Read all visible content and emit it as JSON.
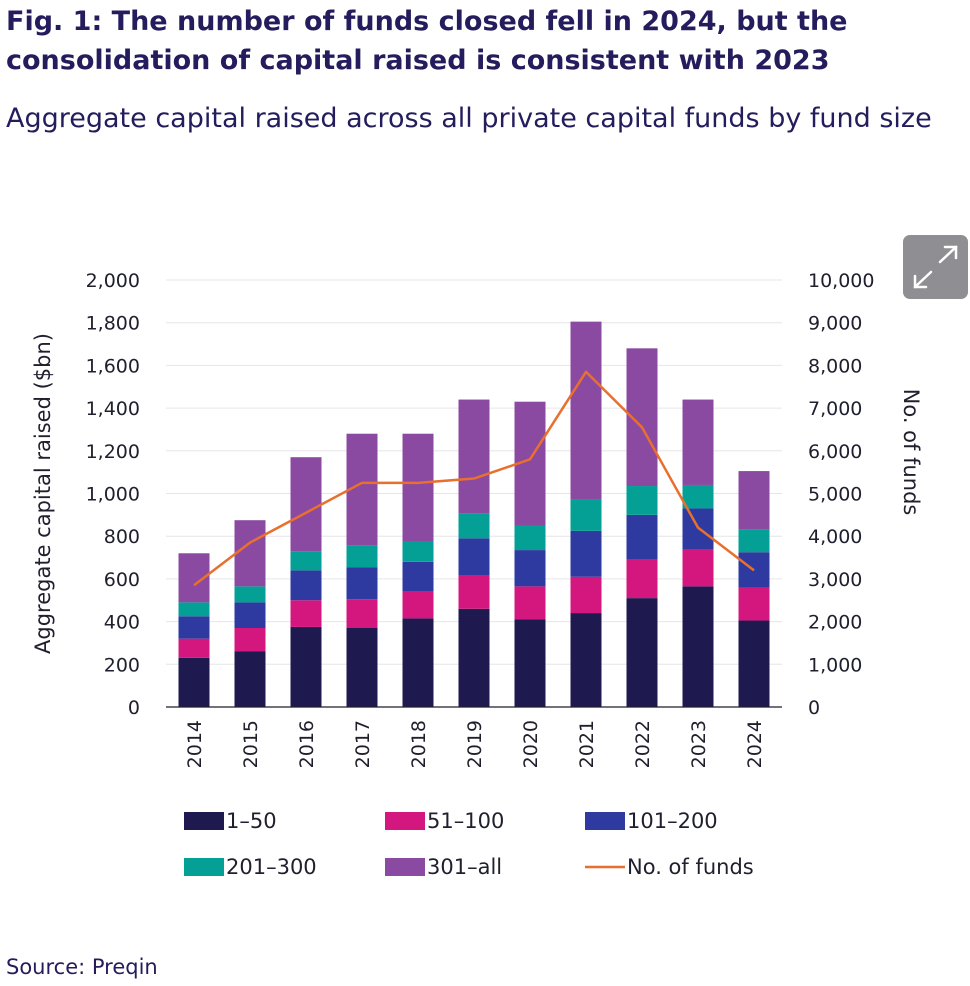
{
  "figure": {
    "title": "Fig. 1: The number of funds closed fell in 2024, but the consolidation of capital raised is consistent with 2023",
    "subtitle": "Aggregate capital raised across all private capital funds by fund size",
    "source": "Source: Preqin",
    "expand_icon": "expand-arrows-icon"
  },
  "chart_data": {
    "type": "bar",
    "stacked": true,
    "categories": [
      "2014",
      "2015",
      "2016",
      "2017",
      "2018",
      "2019",
      "2020",
      "2021",
      "2022",
      "2023",
      "2024"
    ],
    "series": [
      {
        "name": "1–50",
        "color": "#1e1a4f",
        "values": [
          230,
          260,
          375,
          370,
          415,
          460,
          410,
          440,
          510,
          565,
          405
        ]
      },
      {
        "name": "51–100",
        "color": "#d4177f",
        "values": [
          90,
          110,
          125,
          135,
          125,
          155,
          155,
          170,
          180,
          175,
          155
        ]
      },
      {
        "name": "101–200",
        "color": "#2e3a9f",
        "values": [
          105,
          120,
          140,
          150,
          140,
          175,
          170,
          215,
          210,
          190,
          165
        ]
      },
      {
        "name": "201–300",
        "color": "#05a095",
        "values": [
          65,
          75,
          90,
          100,
          95,
          115,
          115,
          145,
          135,
          110,
          105
        ]
      },
      {
        "name": "301–all",
        "color": "#8b4aa1",
        "values": [
          230,
          310,
          440,
          525,
          505,
          535,
          580,
          835,
          645,
          400,
          275
        ]
      }
    ],
    "line_series": {
      "name": "No. of funds",
      "color": "#e86f2e",
      "axis": "right",
      "values": [
        2850,
        3850,
        4550,
        5250,
        5250,
        5350,
        5800,
        7850,
        6550,
        4200,
        3200
      ]
    },
    "ylabel": "Aggregate capital raised ($bn)",
    "ylim": [
      0,
      2000
    ],
    "yticks": [
      "0",
      "200",
      "400",
      "600",
      "800",
      "1,000",
      "1,200",
      "1,400",
      "1,600",
      "1,800",
      "2,000"
    ],
    "y2label": "No. of funds",
    "y2lim": [
      0,
      10000
    ],
    "y2ticks": [
      "0",
      "1,000",
      "2,000",
      "3,000",
      "4,000",
      "5,000",
      "6,000",
      "7,000",
      "8,000",
      "9,000",
      "10,000"
    ],
    "grid": true,
    "legend_position": "bottom"
  }
}
